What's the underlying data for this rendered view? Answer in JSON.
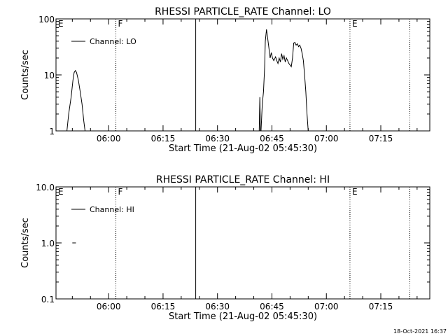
{
  "footer": {
    "timestamp": "18-Oct-2021 16:37"
  },
  "chart_data": [
    {
      "type": "line",
      "title": "RHESSI PARTICLE_RATE Channel: LO",
      "xlabel": "Start Time (21-Aug-02 05:45:30)",
      "ylabel": "Counts/sec",
      "yscale": "log",
      "ylim": [
        1,
        100
      ],
      "xlim": [
        "05:45:30",
        "07:28:30"
      ],
      "yticks": [
        "1",
        "10",
        "100"
      ],
      "xticks": [
        "06:00",
        "06:15",
        "06:30",
        "06:45",
        "07:00",
        "07:15"
      ],
      "legend": {
        "position": "top-left",
        "entries": [
          "Channel: LO"
        ]
      },
      "markers": [
        {
          "label": "E",
          "time": "05:45:30",
          "style": "none"
        },
        {
          "label": "F",
          "time": "06:02:00",
          "style": "dotted"
        },
        {
          "label": "",
          "time": "06:24:00",
          "style": "solid"
        },
        {
          "label": "E",
          "time": "07:06:30",
          "style": "dotted"
        },
        {
          "label": "",
          "time": "07:23:00",
          "style": "dotted"
        }
      ],
      "series": [
        {
          "name": "Channel: LO",
          "segments": [
            [
              [
                "05:48:30",
                1
              ],
              [
                "05:49:00",
                2
              ],
              [
                "05:49:40",
                4
              ],
              [
                "05:50:10",
                8
              ],
              [
                "05:50:30",
                11
              ],
              [
                "05:50:50",
                12
              ],
              [
                "05:51:10",
                11
              ],
              [
                "05:51:40",
                8
              ],
              [
                "05:52:10",
                5
              ],
              [
                "05:52:40",
                3
              ],
              [
                "05:53:10",
                1.5
              ],
              [
                "05:53:30",
                1
              ]
            ],
            [
              [
                "06:41:30",
                1
              ],
              [
                "06:41:40",
                4
              ],
              [
                "06:41:50",
                1
              ]
            ],
            [
              [
                "06:42:00",
                1
              ],
              [
                "06:42:20",
                3
              ],
              [
                "06:42:40",
                5
              ],
              [
                "06:43:00",
                14
              ],
              [
                "06:43:10",
                40
              ],
              [
                "06:43:30",
                65
              ],
              [
                "06:43:50",
                45
              ],
              [
                "06:44:10",
                30
              ],
              [
                "06:44:30",
                20
              ],
              [
                "06:44:50",
                25
              ],
              [
                "06:45:10",
                20
              ],
              [
                "06:45:30",
                18
              ],
              [
                "06:46:00",
                21
              ],
              [
                "06:46:20",
                18
              ],
              [
                "06:46:40",
                16
              ],
              [
                "06:47:00",
                20
              ],
              [
                "06:47:20",
                17
              ],
              [
                "06:47:40",
                24
              ],
              [
                "06:48:00",
                19
              ],
              [
                "06:48:20",
                22
              ],
              [
                "06:48:40",
                17
              ],
              [
                "06:49:00",
                20
              ],
              [
                "06:49:20",
                18
              ],
              [
                "06:49:40",
                16
              ],
              [
                "06:50:00",
                15
              ],
              [
                "06:50:20",
                14
              ],
              [
                "06:50:40",
                20
              ],
              [
                "06:51:00",
                37
              ],
              [
                "06:51:20",
                38
              ],
              [
                "06:51:40",
                34
              ],
              [
                "06:52:00",
                36
              ],
              [
                "06:52:20",
                32
              ],
              [
                "06:52:40",
                34
              ],
              [
                "06:53:00",
                30
              ],
              [
                "06:53:20",
                24
              ],
              [
                "06:53:40",
                18
              ],
              [
                "06:54:00",
                10
              ],
              [
                "06:54:20",
                5
              ],
              [
                "06:54:40",
                2
              ],
              [
                "06:55:00",
                1
              ]
            ]
          ]
        }
      ]
    },
    {
      "type": "line",
      "title": "RHESSI PARTICLE_RATE Channel: HI",
      "xlabel": "Start Time (21-Aug-02 05:45:30)",
      "ylabel": "Counts/sec",
      "yscale": "log",
      "ylim": [
        0.1,
        10
      ],
      "xlim": [
        "05:45:30",
        "07:28:30"
      ],
      "yticks": [
        "0.1",
        "1.0",
        "10.0"
      ],
      "xticks": [
        "06:00",
        "06:15",
        "06:30",
        "06:45",
        "07:00",
        "07:15"
      ],
      "legend": {
        "position": "top-left",
        "entries": [
          "Channel: HI"
        ]
      },
      "markers": [
        {
          "label": "E",
          "time": "05:45:30",
          "style": "none"
        },
        {
          "label": "F",
          "time": "06:02:00",
          "style": "dotted"
        },
        {
          "label": "",
          "time": "06:24:00",
          "style": "solid"
        },
        {
          "label": "E",
          "time": "07:06:30",
          "style": "dotted"
        },
        {
          "label": "",
          "time": "07:23:00",
          "style": "dotted"
        }
      ],
      "series": [
        {
          "name": "Channel: HI",
          "segments": [
            [
              [
                "05:50:00",
                1
              ],
              [
                "05:51:00",
                1
              ]
            ]
          ]
        }
      ]
    }
  ]
}
